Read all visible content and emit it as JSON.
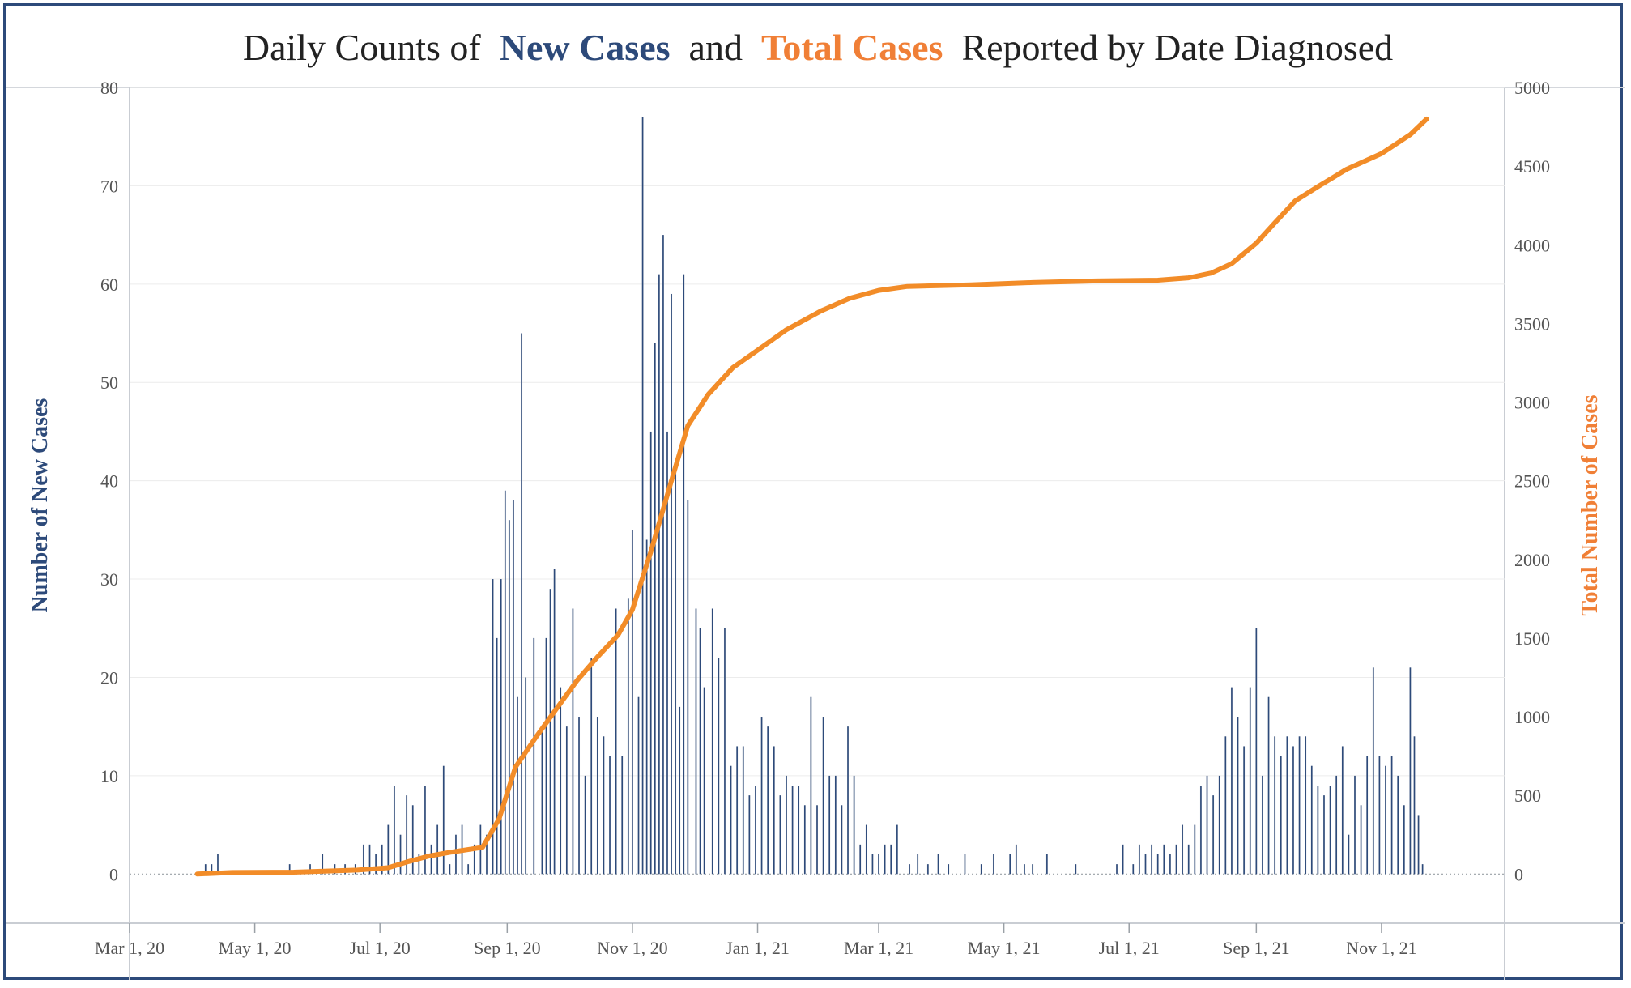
{
  "colors": {
    "new_cases": "#2d4a7a",
    "new_cases_light": "#cfd2d7",
    "total_cases": "#f28c28",
    "title_orange": "#f07f36",
    "frame": "#2d4a7a"
  },
  "title": {
    "prefix": "Daily Counts of ",
    "new_cases": "New Cases",
    "middle": " and ",
    "total_cases": "Total Cases",
    "suffix": " Reported by Date Diagnosed"
  },
  "chart_data": {
    "type": "bar",
    "title": "Daily Counts of New Cases and Total Cases Reported by Date Diagnosed",
    "xlabel": "",
    "ylabel": "Number of New Cases",
    "y2label": "Total Number of Cases",
    "xlim": [
      "2020-03-01",
      "2021-12-31"
    ],
    "ylim": [
      -5,
      80
    ],
    "y2lim": [
      -312.5,
      5000
    ],
    "x_tick_labels": [
      "Mar 1, 20",
      "May 1, 20",
      "Jul 1, 20",
      "Sep 1, 20",
      "Nov 1, 20",
      "Jan 1, 21",
      "Mar 1, 21",
      "May 1, 21",
      "Jul 1, 21",
      "Sep 1, 21",
      "Nov 1, 21"
    ],
    "x_tick_dates": [
      "2020-03-01",
      "2020-05-01",
      "2020-07-01",
      "2020-09-01",
      "2020-11-01",
      "2021-01-01",
      "2021-03-01",
      "2021-05-01",
      "2021-07-01",
      "2021-09-01",
      "2021-11-01"
    ],
    "y_tick_labels": [
      "0",
      "10",
      "20",
      "30",
      "40",
      "50",
      "60",
      "70",
      "80"
    ],
    "y2_tick_labels": [
      "0",
      "500",
      "1000",
      "1500",
      "2000",
      "2500",
      "3000",
      "3500",
      "4000",
      "4500",
      "5000"
    ],
    "grid": true,
    "series": [
      {
        "name": "New Cases",
        "type": "bar",
        "axis": "left",
        "points": [
          [
            "2020-04-07",
            1
          ],
          [
            "2020-04-10",
            1
          ],
          [
            "2020-04-13",
            2
          ],
          [
            "2020-05-18",
            1
          ],
          [
            "2020-05-28",
            1
          ],
          [
            "2020-06-03",
            2
          ],
          [
            "2020-06-09",
            1
          ],
          [
            "2020-06-14",
            1
          ],
          [
            "2020-06-19",
            1
          ],
          [
            "2020-06-23",
            3
          ],
          [
            "2020-06-26",
            3
          ],
          [
            "2020-06-29",
            2
          ],
          [
            "2020-07-02",
            3
          ],
          [
            "2020-07-05",
            5
          ],
          [
            "2020-07-08",
            9
          ],
          [
            "2020-07-11",
            4
          ],
          [
            "2020-07-14",
            8
          ],
          [
            "2020-07-17",
            7
          ],
          [
            "2020-07-20",
            2
          ],
          [
            "2020-07-23",
            9
          ],
          [
            "2020-07-26",
            3
          ],
          [
            "2020-07-29",
            5
          ],
          [
            "2020-08-01",
            11
          ],
          [
            "2020-08-04",
            1
          ],
          [
            "2020-08-07",
            4
          ],
          [
            "2020-08-10",
            5
          ],
          [
            "2020-08-13",
            1
          ],
          [
            "2020-08-16",
            3
          ],
          [
            "2020-08-19",
            5
          ],
          [
            "2020-08-22",
            4
          ],
          [
            "2020-08-25",
            30
          ],
          [
            "2020-08-27",
            24
          ],
          [
            "2020-08-29",
            30
          ],
          [
            "2020-08-31",
            39
          ],
          [
            "2020-09-02",
            36
          ],
          [
            "2020-09-04",
            38
          ],
          [
            "2020-09-06",
            18
          ],
          [
            "2020-09-08",
            55
          ],
          [
            "2020-09-10",
            20
          ],
          [
            "2020-09-14",
            24
          ],
          [
            "2020-09-18",
            15
          ],
          [
            "2020-09-20",
            24
          ],
          [
            "2020-09-22",
            29
          ],
          [
            "2020-09-24",
            31
          ],
          [
            "2020-09-27",
            19
          ],
          [
            "2020-09-30",
            15
          ],
          [
            "2020-10-03",
            27
          ],
          [
            "2020-10-06",
            16
          ],
          [
            "2020-10-09",
            10
          ],
          [
            "2020-10-12",
            22
          ],
          [
            "2020-10-15",
            16
          ],
          [
            "2020-10-18",
            14
          ],
          [
            "2020-10-21",
            12
          ],
          [
            "2020-10-24",
            27
          ],
          [
            "2020-10-27",
            12
          ],
          [
            "2020-10-30",
            28
          ],
          [
            "2020-11-01",
            35
          ],
          [
            "2020-11-04",
            18
          ],
          [
            "2020-11-06",
            77
          ],
          [
            "2020-11-08",
            34
          ],
          [
            "2020-11-10",
            45
          ],
          [
            "2020-11-12",
            54
          ],
          [
            "2020-11-14",
            61
          ],
          [
            "2020-11-16",
            65
          ],
          [
            "2020-11-18",
            45
          ],
          [
            "2020-11-20",
            59
          ],
          [
            "2020-11-22",
            42
          ],
          [
            "2020-11-24",
            17
          ],
          [
            "2020-11-26",
            61
          ],
          [
            "2020-11-28",
            38
          ],
          [
            "2020-12-02",
            27
          ],
          [
            "2020-12-04",
            25
          ],
          [
            "2020-12-06",
            19
          ],
          [
            "2020-12-10",
            27
          ],
          [
            "2020-12-13",
            22
          ],
          [
            "2020-12-16",
            25
          ],
          [
            "2020-12-19",
            11
          ],
          [
            "2020-12-22",
            13
          ],
          [
            "2020-12-25",
            13
          ],
          [
            "2020-12-28",
            8
          ],
          [
            "2020-12-31",
            9
          ],
          [
            "2021-01-03",
            16
          ],
          [
            "2021-01-06",
            15
          ],
          [
            "2021-01-09",
            13
          ],
          [
            "2021-01-12",
            8
          ],
          [
            "2021-01-15",
            10
          ],
          [
            "2021-01-18",
            9
          ],
          [
            "2021-01-21",
            9
          ],
          [
            "2021-01-24",
            7
          ],
          [
            "2021-01-27",
            18
          ],
          [
            "2021-01-30",
            7
          ],
          [
            "2021-02-02",
            16
          ],
          [
            "2021-02-05",
            10
          ],
          [
            "2021-02-08",
            10
          ],
          [
            "2021-02-11",
            7
          ],
          [
            "2021-02-14",
            15
          ],
          [
            "2021-02-17",
            10
          ],
          [
            "2021-02-20",
            3
          ],
          [
            "2021-02-23",
            5
          ],
          [
            "2021-02-26",
            2
          ],
          [
            "2021-03-01",
            2
          ],
          [
            "2021-03-04",
            3
          ],
          [
            "2021-03-07",
            3
          ],
          [
            "2021-03-10",
            5
          ],
          [
            "2021-03-16",
            1
          ],
          [
            "2021-03-20",
            2
          ],
          [
            "2021-03-25",
            1
          ],
          [
            "2021-03-30",
            2
          ],
          [
            "2021-04-04",
            1
          ],
          [
            "2021-04-12",
            2
          ],
          [
            "2021-04-20",
            1
          ],
          [
            "2021-04-26",
            2
          ],
          [
            "2021-05-04",
            2
          ],
          [
            "2021-05-07",
            3
          ],
          [
            "2021-05-11",
            1
          ],
          [
            "2021-05-15",
            1
          ],
          [
            "2021-05-22",
            2
          ],
          [
            "2021-06-05",
            1
          ],
          [
            "2021-06-25",
            1
          ],
          [
            "2021-06-28",
            3
          ],
          [
            "2021-07-03",
            1
          ],
          [
            "2021-07-06",
            3
          ],
          [
            "2021-07-09",
            2
          ],
          [
            "2021-07-12",
            3
          ],
          [
            "2021-07-15",
            2
          ],
          [
            "2021-07-18",
            3
          ],
          [
            "2021-07-21",
            2
          ],
          [
            "2021-07-24",
            3
          ],
          [
            "2021-07-27",
            5
          ],
          [
            "2021-07-30",
            3
          ],
          [
            "2021-08-02",
            5
          ],
          [
            "2021-08-05",
            9
          ],
          [
            "2021-08-08",
            10
          ],
          [
            "2021-08-11",
            8
          ],
          [
            "2021-08-14",
            10
          ],
          [
            "2021-08-17",
            14
          ],
          [
            "2021-08-20",
            19
          ],
          [
            "2021-08-23",
            16
          ],
          [
            "2021-08-26",
            13
          ],
          [
            "2021-08-29",
            19
          ],
          [
            "2021-09-01",
            25
          ],
          [
            "2021-09-04",
            10
          ],
          [
            "2021-09-07",
            18
          ],
          [
            "2021-09-10",
            14
          ],
          [
            "2021-09-13",
            12
          ],
          [
            "2021-09-16",
            14
          ],
          [
            "2021-09-19",
            13
          ],
          [
            "2021-09-22",
            14
          ],
          [
            "2021-09-25",
            14
          ],
          [
            "2021-09-28",
            11
          ],
          [
            "2021-10-01",
            9
          ],
          [
            "2021-10-04",
            8
          ],
          [
            "2021-10-07",
            9
          ],
          [
            "2021-10-10",
            10
          ],
          [
            "2021-10-13",
            13
          ],
          [
            "2021-10-16",
            4
          ],
          [
            "2021-10-19",
            10
          ],
          [
            "2021-10-22",
            7
          ],
          [
            "2021-10-25",
            12
          ],
          [
            "2021-10-28",
            21
          ],
          [
            "2021-10-31",
            12
          ],
          [
            "2021-11-03",
            11
          ],
          [
            "2021-11-06",
            12
          ],
          [
            "2021-11-09",
            10
          ],
          [
            "2021-11-12",
            7
          ],
          [
            "2021-11-15",
            21
          ],
          [
            "2021-11-17",
            14
          ],
          [
            "2021-11-19",
            6
          ],
          [
            "2021-11-21",
            1
          ]
        ]
      },
      {
        "name": "Total Cases",
        "type": "line",
        "axis": "right",
        "points": [
          [
            "2020-04-03",
            0
          ],
          [
            "2020-04-20",
            10
          ],
          [
            "2020-05-20",
            12
          ],
          [
            "2020-06-20",
            25
          ],
          [
            "2020-07-05",
            40
          ],
          [
            "2020-07-15",
            80
          ],
          [
            "2020-07-25",
            115
          ],
          [
            "2020-08-05",
            140
          ],
          [
            "2020-08-20",
            170
          ],
          [
            "2020-08-28",
            350
          ],
          [
            "2020-09-05",
            680
          ],
          [
            "2020-09-15",
            870
          ],
          [
            "2020-09-25",
            1050
          ],
          [
            "2020-10-05",
            1230
          ],
          [
            "2020-10-15",
            1380
          ],
          [
            "2020-10-25",
            1520
          ],
          [
            "2020-11-01",
            1680
          ],
          [
            "2020-11-10",
            2050
          ],
          [
            "2020-11-20",
            2500
          ],
          [
            "2020-11-28",
            2850
          ],
          [
            "2020-12-08",
            3050
          ],
          [
            "2020-12-20",
            3220
          ],
          [
            "2021-01-01",
            3330
          ],
          [
            "2021-01-15",
            3460
          ],
          [
            "2021-02-01",
            3580
          ],
          [
            "2021-02-15",
            3660
          ],
          [
            "2021-03-01",
            3710
          ],
          [
            "2021-03-15",
            3735
          ],
          [
            "2021-04-15",
            3745
          ],
          [
            "2021-05-15",
            3760
          ],
          [
            "2021-06-15",
            3770
          ],
          [
            "2021-07-15",
            3775
          ],
          [
            "2021-07-30",
            3790
          ],
          [
            "2021-08-10",
            3820
          ],
          [
            "2021-08-20",
            3880
          ],
          [
            "2021-09-01",
            4010
          ],
          [
            "2021-09-10",
            4140
          ],
          [
            "2021-09-20",
            4280
          ],
          [
            "2021-10-01",
            4370
          ],
          [
            "2021-10-15",
            4480
          ],
          [
            "2021-11-01",
            4580
          ],
          [
            "2021-11-15",
            4700
          ],
          [
            "2021-11-23",
            4800
          ]
        ]
      }
    ]
  }
}
